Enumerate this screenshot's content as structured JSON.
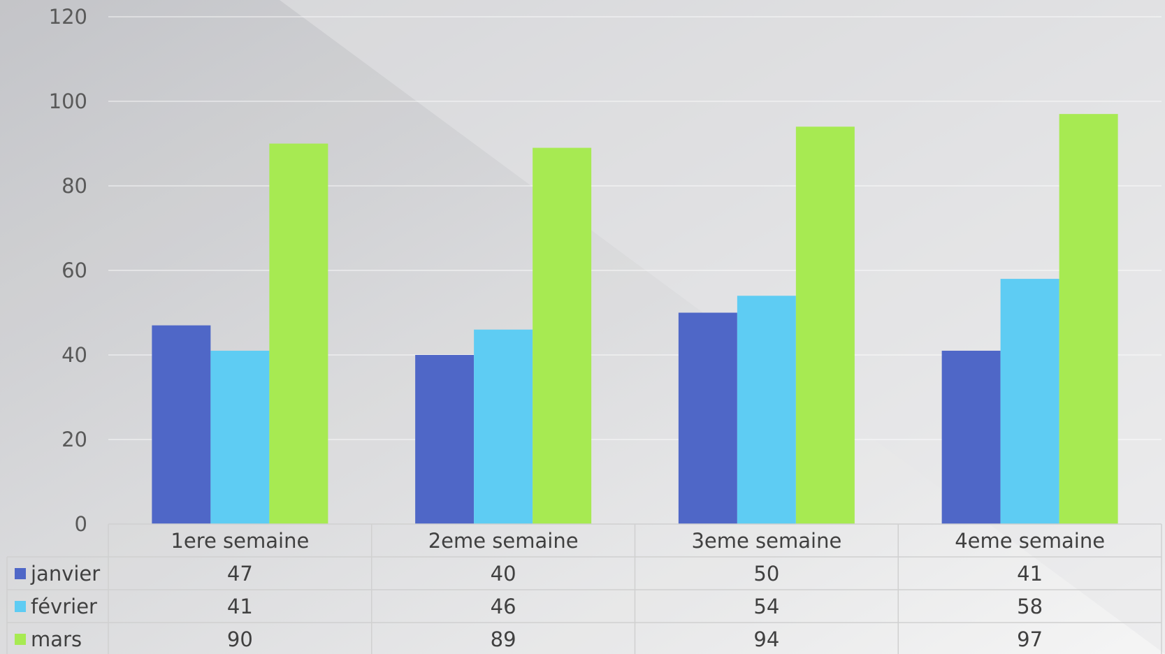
{
  "chart_data": {
    "type": "bar",
    "categories": [
      "1ere semaine",
      "2eme semaine",
      "3eme semaine",
      "4eme semaine"
    ],
    "series": [
      {
        "name": "janvier",
        "color": "#4F67C7",
        "values": [
          47,
          40,
          50,
          41
        ]
      },
      {
        "name": "février",
        "color": "#5ECCF3",
        "values": [
          41,
          46,
          54,
          58
        ]
      },
      {
        "name": "mars",
        "color": "#A7EA52",
        "values": [
          90,
          89,
          94,
          97
        ]
      }
    ],
    "ylim": [
      0,
      120
    ],
    "yticks": [
      0,
      20,
      40,
      60,
      80,
      100,
      120
    ],
    "grid": true,
    "legend": "data-table-left",
    "data_table": true,
    "background": [
      "#BFC0C4",
      "#F4F4F4"
    ]
  }
}
